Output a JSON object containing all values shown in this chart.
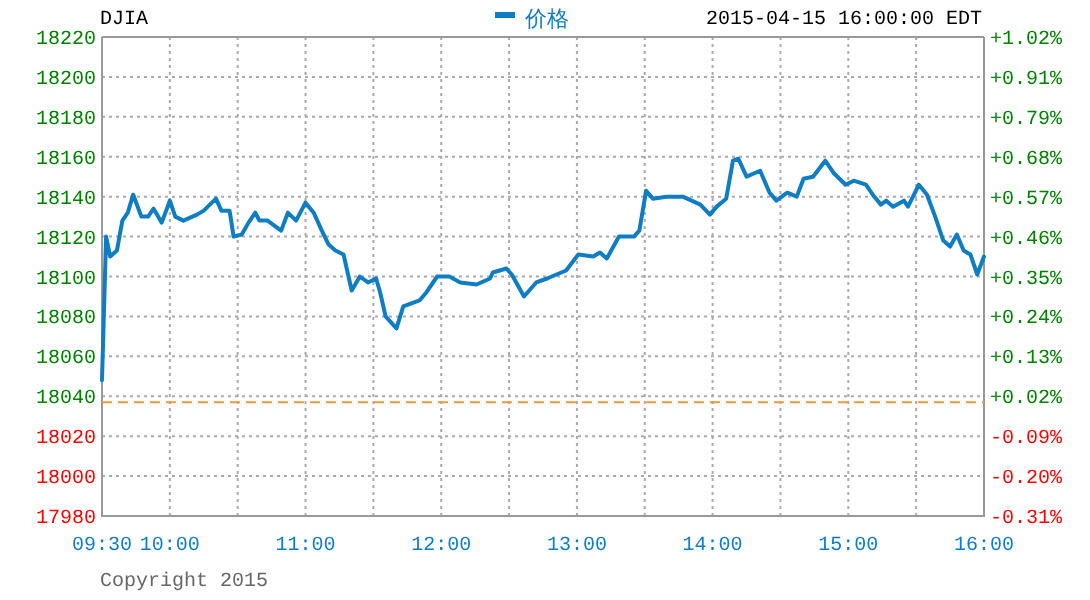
{
  "chart_data": {
    "type": "line",
    "title": "DJIA",
    "subtitle": "2015-04-15 16:00:00 EDT",
    "x": [
      9.5,
      9.53,
      9.56,
      9.61,
      9.65,
      9.69,
      9.73,
      9.79,
      9.84,
      9.88,
      9.94,
      10.0,
      10.04,
      10.1,
      10.2,
      10.25,
      10.34,
      10.38,
      10.44,
      10.47,
      10.53,
      10.58,
      10.63,
      10.66,
      10.72,
      10.82,
      10.87,
      10.93,
      11.0,
      11.06,
      11.12,
      11.17,
      11.22,
      11.28,
      11.3,
      11.34,
      11.4,
      11.46,
      11.52,
      11.55,
      11.59,
      11.67,
      11.72,
      11.84,
      11.89,
      11.97,
      12.06,
      12.14,
      12.26,
      12.36,
      12.38,
      12.48,
      12.52,
      12.61,
      12.7,
      12.78,
      12.92,
      13.01,
      13.12,
      13.17,
      13.22,
      13.31,
      13.42,
      13.46,
      13.51,
      13.56,
      13.66,
      13.78,
      13.91,
      13.98,
      14.03,
      14.1,
      14.15,
      14.19,
      14.25,
      14.35,
      14.42,
      14.47,
      14.55,
      14.62,
      14.67,
      14.74,
      14.83,
      14.89,
      14.98,
      15.04,
      15.13,
      15.18,
      15.24,
      15.28,
      15.33,
      15.41,
      15.44,
      15.52,
      15.58,
      15.64,
      15.7,
      15.75,
      15.8,
      15.85,
      15.9,
      15.95,
      16.0
    ],
    "series": [
      {
        "name": "价格",
        "color": "#0f7dc2",
        "values": [
          18048,
          18120,
          18110,
          18113,
          18128,
          18132,
          18141,
          18130,
          18130,
          18134,
          18127,
          18138,
          18130,
          18128,
          18131,
          18133,
          18139,
          18133,
          18133,
          18120,
          18121,
          18127,
          18132,
          18128,
          18128,
          18123,
          18132,
          18128,
          18137,
          18132,
          18123,
          18116,
          18113,
          18111,
          18105,
          18093,
          18100,
          18097,
          18099,
          18092,
          18080,
          18074,
          18085,
          18088,
          18092,
          18100,
          18100,
          18097,
          18096,
          18099,
          18102,
          18104,
          18101,
          18090,
          18097,
          18099,
          18103,
          18111,
          18110,
          18112,
          18109,
          18120,
          18120,
          18123,
          18143,
          18139,
          18140,
          18140,
          18136,
          18131,
          18135,
          18139,
          18158,
          18159,
          18150,
          18153,
          18142,
          18138,
          18142,
          18140,
          18149,
          18150,
          18158,
          18152,
          18146,
          18148,
          18146,
          18141,
          18136,
          18138,
          18135,
          18138,
          18135,
          18146,
          18141,
          18130,
          18118,
          18115,
          18121,
          18113,
          18111,
          18101,
          18110
        ]
      }
    ],
    "xlim": [
      9.5,
      16.0
    ],
    "xticks": [
      {
        "value": 9.5,
        "label": "09:30"
      },
      {
        "value": 10,
        "label": "10:00"
      },
      {
        "value": 10.5,
        "label": null
      },
      {
        "value": 11,
        "label": "11:00"
      },
      {
        "value": 11.5,
        "label": null
      },
      {
        "value": 12,
        "label": "12:00"
      },
      {
        "value": 12.5,
        "label": null
      },
      {
        "value": 13,
        "label": "13:00"
      },
      {
        "value": 13.5,
        "label": null
      },
      {
        "value": 14,
        "label": "14:00"
      },
      {
        "value": 14.5,
        "label": null
      },
      {
        "value": 15,
        "label": "15:00"
      },
      {
        "value": 15.5,
        "label": null
      },
      {
        "value": 16,
        "label": "16:00"
      }
    ],
    "ylim": [
      17980,
      18220
    ],
    "yticks": [
      17980,
      18000,
      18020,
      18040,
      18060,
      18080,
      18100,
      18120,
      18140,
      18160,
      18180,
      18200,
      18220
    ],
    "y2lim": [
      -0.315,
      1.016
    ],
    "y2ticks": [
      {
        "value": -0.315,
        "label": "-0.31%"
      },
      {
        "value": -0.204,
        "label": "-0.20%"
      },
      {
        "value": -0.093,
        "label": "-0.09%"
      },
      {
        "value": 0.018,
        "label": "+0.02%"
      },
      {
        "value": 0.129,
        "label": "+0.13%"
      },
      {
        "value": 0.24,
        "label": "+0.24%"
      },
      {
        "value": 0.35,
        "label": "+0.35%"
      },
      {
        "value": 0.461,
        "label": "+0.46%"
      },
      {
        "value": 0.572,
        "label": "+0.57%"
      },
      {
        "value": 0.683,
        "label": "+0.68%"
      },
      {
        "value": 0.794,
        "label": "+0.79%"
      },
      {
        "value": 0.905,
        "label": "+0.91%"
      },
      {
        "value": 1.016,
        "label": "+1.02%"
      }
    ],
    "ref_lines": [
      {
        "axis": "y",
        "value": 18037,
        "color": "#f39a2e",
        "line_style": "dashed"
      }
    ],
    "grid": true,
    "legend": "top",
    "annotations": [
      "Copyright 2015"
    ]
  }
}
